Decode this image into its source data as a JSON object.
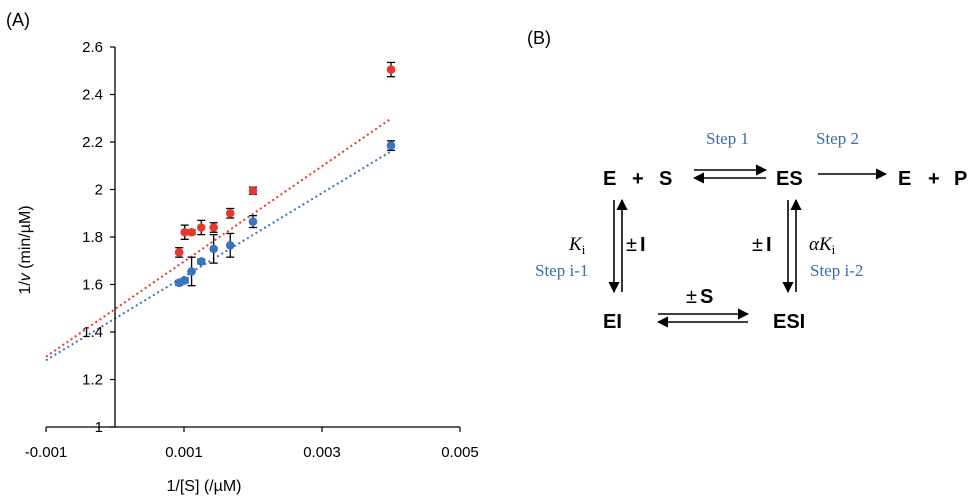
{
  "chart_data": {
    "type": "scatter",
    "panel_label": "(A)",
    "xlabel": "1/[S] (/µM)",
    "ylabel_prefix": "1/",
    "ylabel_var": "v",
    "ylabel_suffix": " (min/µM)",
    "xlim": [
      -0.001,
      0.005
    ],
    "ylim": [
      1.0,
      2.6
    ],
    "x_ticks": [
      -0.001,
      0.001,
      0.003,
      0.005
    ],
    "x_tick_labels": [
      "-0.001",
      "0.001",
      "0.003",
      "0.005"
    ],
    "y_ticks": [
      1,
      1.2,
      1.4,
      1.6,
      1.8,
      2,
      2.2,
      2.4,
      2.6
    ],
    "y_tick_labels": [
      "1",
      "1.2",
      "1.4",
      "1.6",
      "1.8",
      "2",
      "2.2",
      "2.4",
      "2.6"
    ],
    "grid": false,
    "series": [
      {
        "color": "#e8382b",
        "x": [
          0.00093,
          0.00101,
          0.00111,
          0.00125,
          0.00143,
          0.00167,
          0.002,
          0.004
        ],
        "y": [
          1.735,
          1.82,
          1.82,
          1.84,
          1.84,
          1.9,
          1.995,
          2.505
        ],
        "err": [
          0.02,
          0.03,
          0.01,
          0.03,
          0.02,
          0.02,
          0.015,
          0.03
        ],
        "trendline": {
          "slope": 200.5,
          "intercept": 1.4964
        },
        "trend_color": "#e8382b"
      },
      {
        "color": "#3a73c2",
        "x": [
          0.00093,
          0.00101,
          0.00111,
          0.00125,
          0.00143,
          0.00167,
          0.002,
          0.004
        ],
        "y": [
          1.607,
          1.617,
          1.655,
          1.697,
          1.75,
          1.765,
          1.865,
          2.185
        ],
        "err": [
          0.01,
          0.01,
          0.06,
          0.01,
          0.06,
          0.05,
          0.025,
          0.02
        ],
        "trendline": {
          "slope": 176.0,
          "intercept": 1.4568
        },
        "trend_color": "#3a73c2"
      }
    ]
  },
  "diagram": {
    "panel_label": "(B)",
    "E_S": {
      "E": "E",
      "plus": "+",
      "S": "S"
    },
    "ES": "ES",
    "E_P": {
      "E": "E",
      "plus": "+",
      "P": "P"
    },
    "EI": "EI",
    "ESI": "ESI",
    "step1": "Step 1",
    "step2": "Step 2",
    "step_i1": "Step i-1",
    "step_i2": "Step i-2",
    "pm": "±",
    "I": "I",
    "S": "S",
    "Ki_K": "K",
    "Ki_sub": "i",
    "alpha": "α",
    "colors": {
      "step_text": "#3a6ea8",
      "black": "#000000"
    }
  }
}
